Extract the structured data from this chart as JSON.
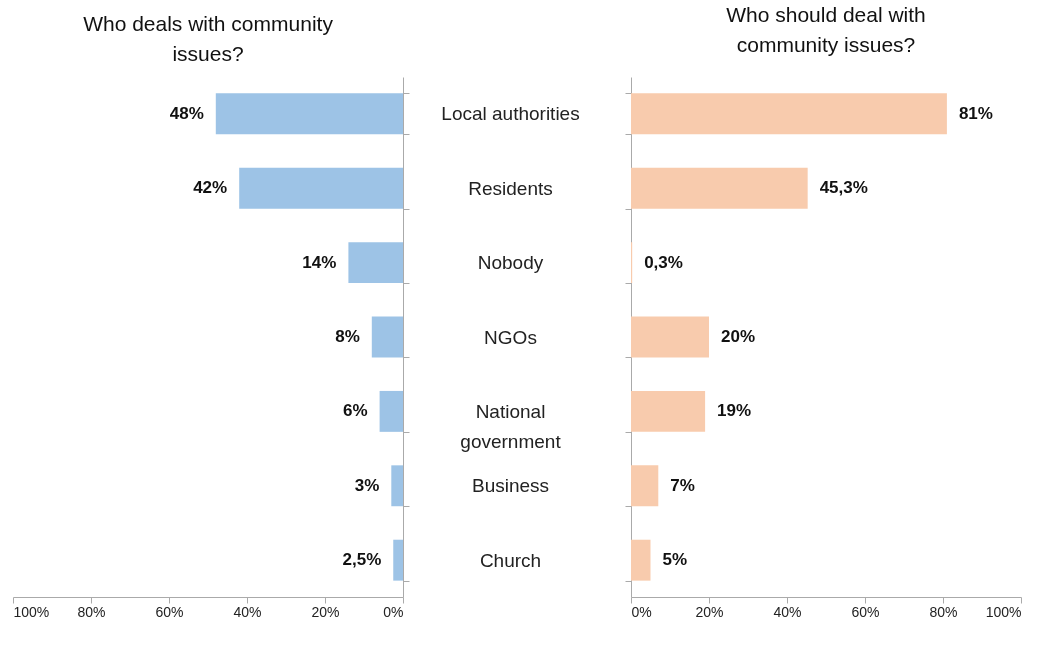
{
  "chart_data": [
    {
      "type": "bar",
      "orientation": "horizontal",
      "title": "Who deals with community issues?",
      "categories": [
        null,
        null,
        null,
        null,
        null,
        null,
        null
      ],
      "series": [
        {
          "color": "#9dc3e6",
          "values": [
            48,
            42,
            14,
            8,
            6,
            3,
            2.5
          ],
          "value_labels": [
            "48%",
            "42%",
            "14%",
            "8%",
            "6%",
            "3%",
            "2,5%"
          ]
        }
      ],
      "xlim": [
        100,
        0
      ],
      "xticks": [
        {
          "value": 100,
          "label": "100%"
        },
        {
          "value": 80,
          "label": "80%"
        },
        {
          "value": 60,
          "label": "60%"
        },
        {
          "value": 40,
          "label": "40%"
        },
        {
          "value": 20,
          "label": "20%"
        },
        {
          "value": 0,
          "label": "0%"
        }
      ],
      "tick_labels": "x",
      "grid": false
    },
    {
      "type": "bar",
      "orientation": "horizontal",
      "title": "Who should deal with community issues?",
      "categories": [
        "Local authorities",
        "Residents",
        "Nobody",
        "NGOs",
        "National government",
        "Business",
        "Church"
      ],
      "series": [
        {
          "color": "#f8cbad",
          "values": [
            81,
            45.3,
            0.3,
            20,
            19,
            7,
            5
          ],
          "value_labels": [
            "81%",
            "45,3%",
            "0,3%",
            "20%",
            "19%",
            "7%",
            "5%"
          ]
        }
      ],
      "xlim": [
        0,
        100
      ],
      "xticks": [
        {
          "value": 0,
          "label": "0%"
        },
        {
          "value": 20,
          "label": "20%"
        },
        {
          "value": 40,
          "label": "40%"
        },
        {
          "value": 60,
          "label": "60%"
        },
        {
          "value": 80,
          "label": "80%"
        },
        {
          "value": 100,
          "label": "100%"
        }
      ],
      "grid": false
    }
  ]
}
